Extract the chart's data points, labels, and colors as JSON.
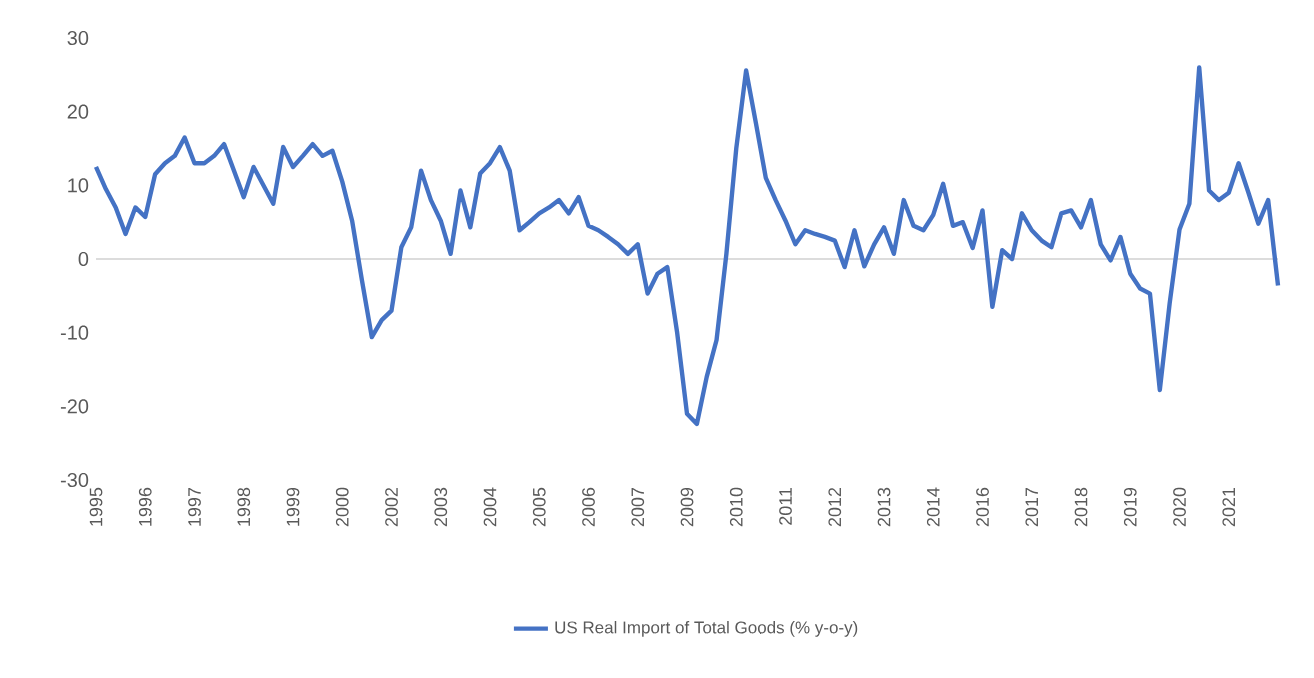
{
  "chart_data": {
    "type": "line",
    "categories": [
      "1995",
      null,
      null,
      null,
      null,
      "1996",
      null,
      null,
      null,
      null,
      "1997",
      null,
      null,
      null,
      null,
      "1998",
      null,
      null,
      null,
      null,
      "1999",
      null,
      null,
      null,
      null,
      "2000",
      null,
      null,
      null,
      null,
      "2002",
      null,
      null,
      null,
      null,
      "2003",
      null,
      null,
      null,
      null,
      "2004",
      null,
      null,
      null,
      null,
      "2005",
      null,
      null,
      null,
      null,
      "2006",
      null,
      null,
      null,
      null,
      "2007",
      null,
      null,
      null,
      null,
      "2009",
      null,
      null,
      null,
      null,
      "2010",
      null,
      null,
      null,
      null,
      "2011",
      null,
      null,
      null,
      null,
      "2012",
      null,
      null,
      null,
      null,
      "2013",
      null,
      null,
      null,
      null,
      "2014",
      null,
      null,
      null,
      null,
      "2016",
      null,
      null,
      null,
      null,
      "2017",
      null,
      null,
      null,
      null,
      "2018",
      null,
      null,
      null,
      null,
      "2019",
      null,
      null,
      null,
      null,
      "2020",
      null,
      null,
      null,
      null,
      "2021",
      null,
      null,
      null,
      null,
      null
    ],
    "series": [
      {
        "name": "US Real Import of Total Goods (% y-o-y)",
        "color": "#4472c4",
        "values": [
          12.5,
          9.5,
          7,
          3.4,
          7,
          5.7,
          11.5,
          13,
          14,
          16.5,
          13,
          13,
          14,
          15.6,
          12,
          8.4,
          12.5,
          10,
          7.5,
          15.2,
          12.5,
          14,
          15.6,
          14,
          14.7,
          10.5,
          5.2,
          -2.9,
          -10.6,
          -8.3,
          -7,
          1.6,
          4.3,
          12,
          8,
          5.2,
          0.7,
          9.3,
          4.3,
          11.6,
          13,
          15.2,
          12,
          3.9,
          5,
          6.2,
          7,
          8,
          6.2,
          8.4,
          4.5,
          3.9,
          3,
          2,
          0.7,
          2,
          -4.7,
          -2,
          -1.1,
          -10,
          -21,
          -22.4,
          -16,
          -11,
          0.7,
          15,
          25.6,
          18.4,
          11,
          8,
          5.2,
          2,
          3.9,
          3.4,
          3,
          2.5,
          -1.1,
          3.9,
          -1,
          2,
          4.3,
          0.7,
          8,
          4.5,
          3.9,
          6,
          10.2,
          4.5,
          5,
          1.5,
          6.6,
          -6.5,
          1.2,
          0,
          6.2,
          3.9,
          2.5,
          1.6,
          6.2,
          6.6,
          4.3,
          8,
          2,
          -0.2,
          3,
          -2,
          -4,
          -4.7,
          -17.8,
          -6,
          4,
          7.5,
          26,
          9.3,
          8,
          9,
          13,
          9,
          4.8,
          8,
          -3.6
        ]
      }
    ],
    "ylim": [
      -30,
      30
    ],
    "yticks": [
      -30,
      -20,
      -10,
      0,
      10,
      20,
      30
    ],
    "legend": "bottom",
    "marker": "none",
    "line_style": "solid"
  }
}
